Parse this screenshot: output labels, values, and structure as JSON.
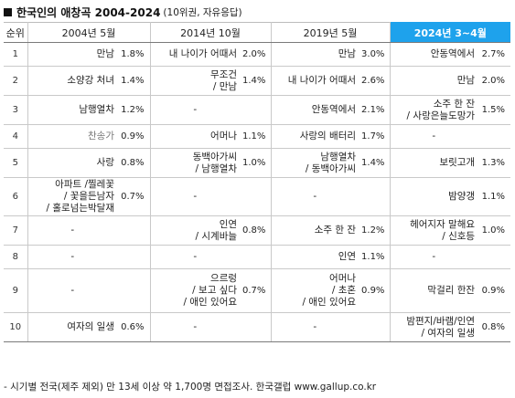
{
  "title": "한국인의 애창곡 2004-2024",
  "subtitle": "(10위권, 자유응답)",
  "headers": {
    "rank": "순위",
    "p2004": "2004년 5월",
    "p2014": "2014년 10월",
    "p2019": "2019년 5월",
    "p2024": "2024년 3~4월"
  },
  "rows": [
    {
      "rank": "1",
      "a": {
        "song": "만남",
        "pct": "1.8%"
      },
      "b": {
        "song": "내 나이가 어때서",
        "pct": "2.0%"
      },
      "c": {
        "song": "만남",
        "pct": "3.0%"
      },
      "d": {
        "song": "안동역에서",
        "pct": "2.7%"
      }
    },
    {
      "rank": "2",
      "a": {
        "song": "소양강 처녀",
        "pct": "1.4%"
      },
      "b": {
        "song": "무조건\n/ 만남",
        "pct": "1.4%"
      },
      "c": {
        "song": "내 나이가 어때서",
        "pct": "2.6%"
      },
      "d": {
        "song": "만남",
        "pct": "2.0%"
      }
    },
    {
      "rank": "3",
      "a": {
        "song": "남행열차",
        "pct": "1.2%"
      },
      "b": {
        "song": "-",
        "pct": ""
      },
      "c": {
        "song": "안동역에서",
        "pct": "2.1%"
      },
      "d": {
        "song": "소주 한 잔\n/ 사랑은늘도망가",
        "pct": "1.5%"
      }
    },
    {
      "rank": "4",
      "a": {
        "song": "찬송가",
        "pct": "0.9%"
      },
      "b": {
        "song": "어머나",
        "pct": "1.1%"
      },
      "c": {
        "song": "사랑의 배터리",
        "pct": "1.7%"
      },
      "d": {
        "song": "-",
        "pct": ""
      }
    },
    {
      "rank": "5",
      "a": {
        "song": "사랑",
        "pct": "0.8%"
      },
      "b": {
        "song": "동백아가씨\n/ 남행열차",
        "pct": "1.0%"
      },
      "c": {
        "song": "남행열차\n/ 동백아가씨",
        "pct": "1.4%"
      },
      "d": {
        "song": "보릿고개",
        "pct": "1.3%"
      }
    },
    {
      "rank": "6",
      "a": {
        "song": "아파트 /찔레꽃\n/ 꽃을든남자\n/ 홀로넘는박달재",
        "pct": "0.7%"
      },
      "b": {
        "song": "-",
        "pct": ""
      },
      "c": {
        "song": "-",
        "pct": ""
      },
      "d": {
        "song": "밤양갱",
        "pct": "1.1%"
      }
    },
    {
      "rank": "7",
      "a": {
        "song": "-",
        "pct": ""
      },
      "b": {
        "song": "인연\n/ 시계바늘",
        "pct": "0.8%"
      },
      "c": {
        "song": "소주 한 잔",
        "pct": "1.2%"
      },
      "d": {
        "song": "헤어지자 말해요\n/ 신호등",
        "pct": "1.0%"
      }
    },
    {
      "rank": "8",
      "a": {
        "song": "-",
        "pct": ""
      },
      "b": {
        "song": "-",
        "pct": ""
      },
      "c": {
        "song": "인연",
        "pct": "1.1%"
      },
      "d": {
        "song": "-",
        "pct": ""
      }
    },
    {
      "rank": "9",
      "a": {
        "song": "-",
        "pct": ""
      },
      "b": {
        "song": "으르렁\n/ 보고 싶다\n/ 애인 있어요",
        "pct": "0.7%"
      },
      "c": {
        "song": "어머나\n/ 초혼\n/ 애인 있어요",
        "pct": "0.9%"
      },
      "d": {
        "song": "막걸리 한잔",
        "pct": "0.9%"
      }
    },
    {
      "rank": "10",
      "a": {
        "song": "여자의 일생",
        "pct": "0.6%"
      },
      "b": {
        "song": "-",
        "pct": ""
      },
      "c": {
        "song": "-",
        "pct": ""
      },
      "d": {
        "song": "밤편지/바램/인연\n/ 여자의 일생",
        "pct": "0.8%"
      }
    }
  ],
  "footer": "- 시기별 전국(제주 제외) 만 13세 이상 약 1,700명 면접조사. 한국갤럽 www.gallup.co.kr"
}
